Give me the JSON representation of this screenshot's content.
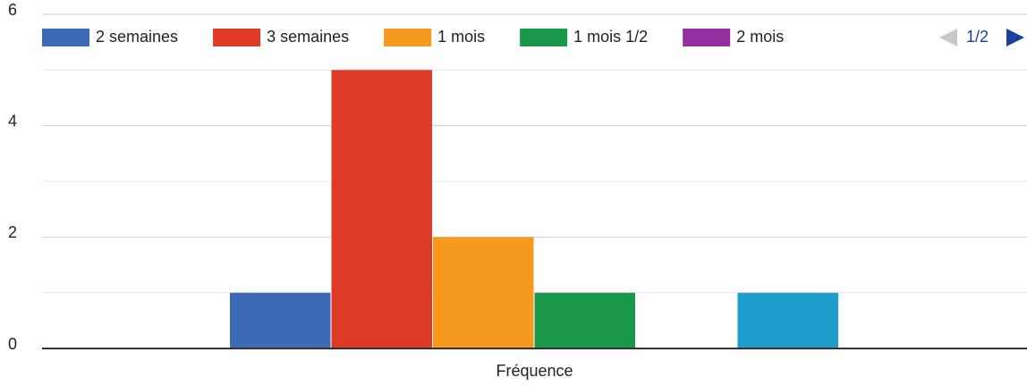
{
  "chart_data": {
    "type": "bar",
    "categories": [
      "Fréquence"
    ],
    "series": [
      {
        "name": "2 semaines",
        "color": "#3d6ab4",
        "values": [
          1
        ]
      },
      {
        "name": "3 semaines",
        "color": "#df3a26",
        "values": [
          5
        ]
      },
      {
        "name": "1 mois",
        "color": "#f7991e",
        "values": [
          2
        ]
      },
      {
        "name": "1 mois 1/2",
        "color": "#19974a",
        "values": [
          1
        ]
      },
      {
        "name": "2 mois",
        "color": "#942ea0",
        "values": [
          0
        ]
      },
      {
        "name": null,
        "color": "#1e9ccb",
        "values": [
          1
        ]
      }
    ],
    "ylim": [
      0,
      6
    ],
    "yticks": [
      0,
      2,
      4,
      6
    ],
    "minor_yticks": [
      1,
      3,
      5
    ],
    "grid": true,
    "legend": "top",
    "legend_page": "1/2"
  }
}
